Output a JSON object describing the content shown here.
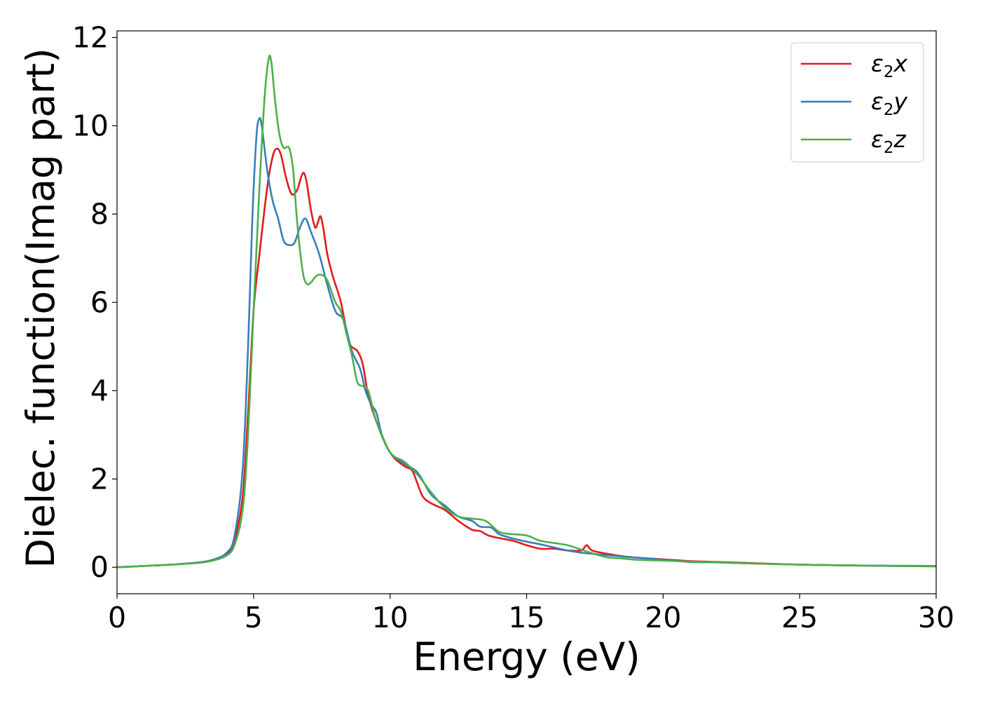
{
  "chart_data": {
    "type": "line",
    "xlabel": "Energy (eV)",
    "ylabel": "Dielec. function(Imag part)",
    "xlim": [
      0,
      30
    ],
    "ylim": [
      -0.6,
      12.15
    ],
    "xticks": [
      0,
      5,
      10,
      15,
      20,
      25,
      30
    ],
    "yticks": [
      0,
      2,
      4,
      6,
      8,
      10,
      12
    ],
    "grid": false,
    "legend_position": "top-right",
    "series": [
      {
        "name": "ε2x",
        "color": "#e41a1c",
        "points": [
          [
            0,
            0.0
          ],
          [
            1,
            0.03
          ],
          [
            2,
            0.06
          ],
          [
            3,
            0.11
          ],
          [
            3.5,
            0.16
          ],
          [
            4,
            0.3
          ],
          [
            4.3,
            0.6
          ],
          [
            4.6,
            1.6
          ],
          [
            4.8,
            3.5
          ],
          [
            5.0,
            5.8
          ],
          [
            5.2,
            7.0
          ],
          [
            5.5,
            8.6
          ],
          [
            5.7,
            9.3
          ],
          [
            5.85,
            9.48
          ],
          [
            6.0,
            9.35
          ],
          [
            6.2,
            8.8
          ],
          [
            6.4,
            8.45
          ],
          [
            6.6,
            8.55
          ],
          [
            6.75,
            8.85
          ],
          [
            6.85,
            8.93
          ],
          [
            6.95,
            8.7
          ],
          [
            7.1,
            8.1
          ],
          [
            7.25,
            7.7
          ],
          [
            7.35,
            7.8
          ],
          [
            7.45,
            7.95
          ],
          [
            7.55,
            7.7
          ],
          [
            7.7,
            7.1
          ],
          [
            7.9,
            6.6
          ],
          [
            8.2,
            6.0
          ],
          [
            8.5,
            5.1
          ],
          [
            8.8,
            4.9
          ],
          [
            9.0,
            4.6
          ],
          [
            9.2,
            3.9
          ],
          [
            9.5,
            3.3
          ],
          [
            10.0,
            2.6
          ],
          [
            10.5,
            2.3
          ],
          [
            10.8,
            2.2
          ],
          [
            11.0,
            1.9
          ],
          [
            11.2,
            1.6
          ],
          [
            11.5,
            1.45
          ],
          [
            12.0,
            1.3
          ],
          [
            12.5,
            1.05
          ],
          [
            13.0,
            0.85
          ],
          [
            13.3,
            0.82
          ],
          [
            13.6,
            0.72
          ],
          [
            14.0,
            0.66
          ],
          [
            14.5,
            0.6
          ],
          [
            15.0,
            0.5
          ],
          [
            15.5,
            0.42
          ],
          [
            16.0,
            0.42
          ],
          [
            16.5,
            0.38
          ],
          [
            17.0,
            0.38
          ],
          [
            17.2,
            0.5
          ],
          [
            17.4,
            0.38
          ],
          [
            18.0,
            0.3
          ],
          [
            18.5,
            0.25
          ],
          [
            19.0,
            0.22
          ],
          [
            20.0,
            0.18
          ],
          [
            21.0,
            0.14
          ],
          [
            22.0,
            0.12
          ],
          [
            23.0,
            0.1
          ],
          [
            25.0,
            0.06
          ],
          [
            27.0,
            0.04
          ],
          [
            30.0,
            0.02
          ]
        ]
      },
      {
        "name": "ε2y",
        "color": "#377eb8",
        "points": [
          [
            0,
            0.0
          ],
          [
            1,
            0.03
          ],
          [
            2,
            0.06
          ],
          [
            3,
            0.11
          ],
          [
            3.5,
            0.17
          ],
          [
            4,
            0.32
          ],
          [
            4.3,
            0.7
          ],
          [
            4.6,
            2.2
          ],
          [
            4.8,
            5.0
          ],
          [
            4.95,
            7.8
          ],
          [
            5.1,
            9.7
          ],
          [
            5.2,
            10.15
          ],
          [
            5.3,
            10.0
          ],
          [
            5.5,
            9.0
          ],
          [
            5.7,
            8.3
          ],
          [
            5.9,
            7.9
          ],
          [
            6.1,
            7.4
          ],
          [
            6.3,
            7.3
          ],
          [
            6.5,
            7.35
          ],
          [
            6.7,
            7.7
          ],
          [
            6.9,
            7.9
          ],
          [
            7.1,
            7.6
          ],
          [
            7.4,
            7.1
          ],
          [
            7.7,
            6.4
          ],
          [
            8.0,
            5.8
          ],
          [
            8.3,
            5.6
          ],
          [
            8.6,
            4.9
          ],
          [
            8.9,
            4.5
          ],
          [
            9.1,
            4.0
          ],
          [
            9.3,
            3.7
          ],
          [
            9.5,
            3.5
          ],
          [
            9.7,
            3.0
          ],
          [
            10.0,
            2.6
          ],
          [
            10.5,
            2.35
          ],
          [
            11.0,
            2.15
          ],
          [
            11.5,
            1.65
          ],
          [
            12.0,
            1.4
          ],
          [
            12.5,
            1.15
          ],
          [
            13.0,
            1.05
          ],
          [
            13.3,
            0.92
          ],
          [
            13.7,
            0.9
          ],
          [
            14.0,
            0.75
          ],
          [
            14.5,
            0.65
          ],
          [
            15.0,
            0.58
          ],
          [
            15.5,
            0.52
          ],
          [
            16.0,
            0.45
          ],
          [
            16.5,
            0.38
          ],
          [
            17.0,
            0.33
          ],
          [
            17.5,
            0.3
          ],
          [
            18.0,
            0.27
          ],
          [
            19.0,
            0.22
          ],
          [
            20.0,
            0.17
          ],
          [
            21.0,
            0.12
          ],
          [
            22.0,
            0.11
          ],
          [
            23.0,
            0.09
          ],
          [
            25.0,
            0.06
          ],
          [
            27.0,
            0.04
          ],
          [
            30.0,
            0.03
          ]
        ]
      },
      {
        "name": "ε2z",
        "color": "#4daf4a",
        "points": [
          [
            0,
            0.0
          ],
          [
            1,
            0.03
          ],
          [
            2,
            0.06
          ],
          [
            3,
            0.1
          ],
          [
            3.5,
            0.15
          ],
          [
            4,
            0.26
          ],
          [
            4.3,
            0.5
          ],
          [
            4.6,
            1.3
          ],
          [
            4.8,
            3.0
          ],
          [
            5.0,
            5.8
          ],
          [
            5.2,
            8.4
          ],
          [
            5.4,
            10.6
          ],
          [
            5.55,
            11.5
          ],
          [
            5.65,
            11.45
          ],
          [
            5.8,
            10.5
          ],
          [
            5.95,
            9.8
          ],
          [
            6.1,
            9.5
          ],
          [
            6.3,
            9.5
          ],
          [
            6.45,
            9.0
          ],
          [
            6.6,
            7.8
          ],
          [
            6.8,
            6.7
          ],
          [
            6.95,
            6.42
          ],
          [
            7.1,
            6.45
          ],
          [
            7.3,
            6.6
          ],
          [
            7.5,
            6.62
          ],
          [
            7.7,
            6.5
          ],
          [
            8.0,
            6.0
          ],
          [
            8.2,
            5.8
          ],
          [
            8.4,
            5.3
          ],
          [
            8.6,
            4.8
          ],
          [
            8.8,
            4.2
          ],
          [
            9.0,
            4.1
          ],
          [
            9.2,
            4.0
          ],
          [
            9.5,
            3.3
          ],
          [
            10.0,
            2.6
          ],
          [
            10.5,
            2.4
          ],
          [
            11.0,
            2.1
          ],
          [
            11.5,
            1.7
          ],
          [
            12.0,
            1.35
          ],
          [
            12.5,
            1.15
          ],
          [
            13.0,
            1.1
          ],
          [
            13.5,
            1.05
          ],
          [
            14.0,
            0.8
          ],
          [
            14.5,
            0.75
          ],
          [
            15.0,
            0.72
          ],
          [
            15.5,
            0.6
          ],
          [
            16.0,
            0.55
          ],
          [
            16.5,
            0.5
          ],
          [
            17.0,
            0.4
          ],
          [
            17.5,
            0.3
          ],
          [
            18.0,
            0.22
          ],
          [
            18.5,
            0.2
          ],
          [
            19.0,
            0.17
          ],
          [
            20.0,
            0.15
          ],
          [
            21.0,
            0.13
          ],
          [
            22.0,
            0.11
          ],
          [
            23.0,
            0.09
          ],
          [
            25.0,
            0.06
          ],
          [
            27.0,
            0.04
          ],
          [
            30.0,
            0.02
          ]
        ]
      }
    ]
  }
}
